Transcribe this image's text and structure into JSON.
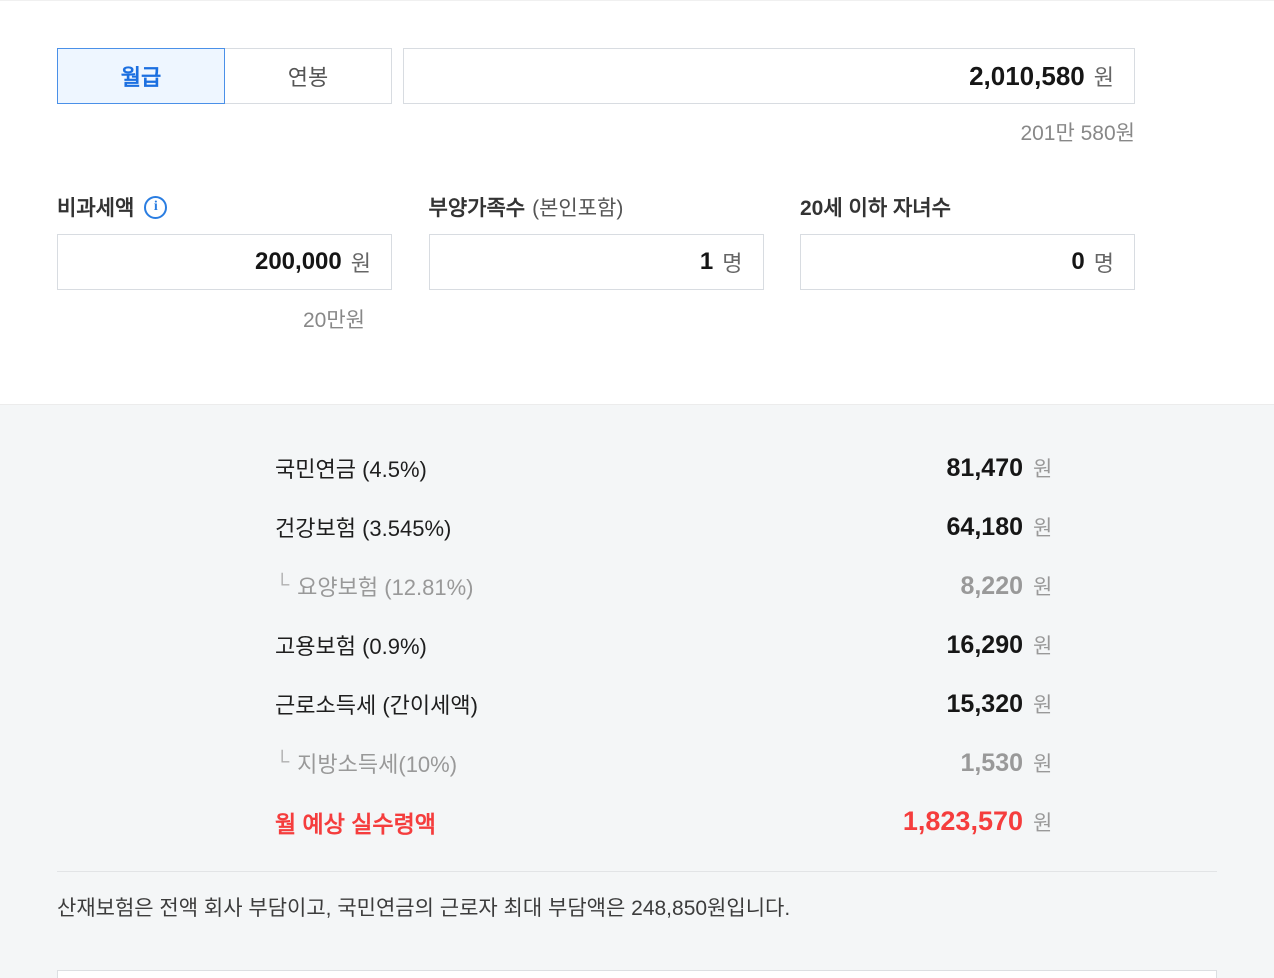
{
  "tabs": [
    {
      "label": "월급",
      "active": true
    },
    {
      "label": "연봉",
      "active": false
    }
  ],
  "salary_input": {
    "value": "2,010,580",
    "unit": "원",
    "converted": "201만 580원"
  },
  "fields": {
    "tax_free": {
      "label": "비과세액",
      "info_icon_glyph": "i",
      "value": "200,000",
      "unit": "원",
      "converted": "20만원"
    },
    "dependents": {
      "label": "부양가족수",
      "label_sub": "(본인포함)",
      "value": "1",
      "unit": "명"
    },
    "children": {
      "label": "20세 이하 자녀수",
      "value": "0",
      "unit": "명"
    }
  },
  "results": {
    "rows": [
      {
        "label": "국민연금 (4.5%)",
        "value": "81,470",
        "unit": "원",
        "type": "main"
      },
      {
        "label": "건강보험 (3.545%)",
        "value": "64,180",
        "unit": "원",
        "type": "main"
      },
      {
        "label": "요양보험 (12.81%)",
        "value": "8,220",
        "unit": "원",
        "type": "sub",
        "corner": "└"
      },
      {
        "label": "고용보험 (0.9%)",
        "value": "16,290",
        "unit": "원",
        "type": "main"
      },
      {
        "label": "근로소득세 (간이세액)",
        "value": "15,320",
        "unit": "원",
        "type": "main"
      },
      {
        "label": "지방소득세(10%)",
        "value": "1,530",
        "unit": "원",
        "type": "sub",
        "corner": "└"
      },
      {
        "label": "월 예상 실수령액",
        "value": "1,823,570",
        "unit": "원",
        "type": "total"
      }
    ],
    "footnote": "산재보험은 전액 회사 부담이고, 국민연금의 근로자 최대 부담액은 248,850원입니다."
  },
  "colors": {
    "accent_blue": "#1b6fe0",
    "total_red": "#f53d3d",
    "panel_bg": "#f4f6f7"
  }
}
